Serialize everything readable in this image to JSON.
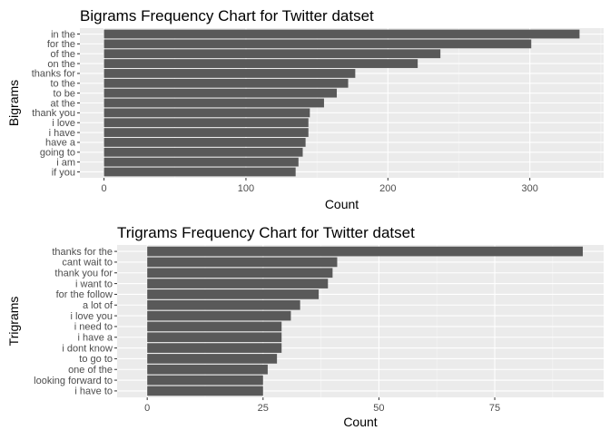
{
  "colors": {
    "panel_bg": "#EBEBEB",
    "grid_major": "#FFFFFF",
    "grid_minor": "#F5F5F5",
    "bar_fill": "#595959",
    "tick_text": "#4D4D4D",
    "axis_text": "#000000"
  },
  "chart_data": [
    {
      "type": "bar",
      "orientation": "horizontal",
      "title": "Bigrams Frequency Chart for Twitter datset",
      "xlabel": "Count",
      "ylabel": "Bigrams",
      "categories": [
        "in the",
        "for the",
        "of the",
        "on the",
        "thanks for",
        "to the",
        "to be",
        "at the",
        "thank you",
        "i love",
        "i have",
        "have a",
        "going to",
        "i am",
        "if you"
      ],
      "values": [
        335,
        301,
        237,
        221,
        177,
        172,
        164,
        155,
        145,
        144,
        144,
        142,
        140,
        137,
        135
      ],
      "xlim": [
        -17,
        352
      ],
      "xticks": [
        0,
        100,
        200,
        300
      ],
      "grid": true,
      "legend": "none"
    },
    {
      "type": "bar",
      "orientation": "horizontal",
      "title": "Trigrams Frequency Chart for Twitter datset",
      "xlabel": "Count",
      "ylabel": "Trigrams",
      "categories": [
        "thanks for the",
        "cant wait to",
        "thank you for",
        "i want to",
        "for the follow",
        "a lot of",
        "i love you",
        "i need to",
        "i have a",
        "i dont know",
        "to go to",
        "one of the",
        "looking forward to",
        "i have to"
      ],
      "values": [
        94,
        41,
        40,
        39,
        37,
        33,
        31,
        29,
        29,
        29,
        28,
        26,
        25,
        25
      ],
      "xlim": [
        -6.5,
        98.5
      ],
      "xticks": [
        0,
        25,
        50,
        75
      ],
      "grid": true,
      "legend": "none"
    }
  ]
}
